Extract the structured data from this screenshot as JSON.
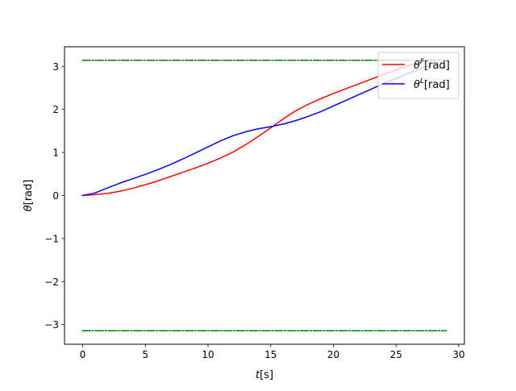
{
  "chart_data": {
    "type": "line",
    "title": "",
    "xlabel": "t[s]",
    "ylabel": "θ[rad]",
    "xlim": [
      -1.45,
      30.45
    ],
    "ylim": [
      -3.456,
      3.456
    ],
    "xticks": [
      0,
      5,
      10,
      15,
      20,
      25,
      30
    ],
    "yticks": [
      -3,
      -2,
      -1,
      0,
      1,
      2,
      3
    ],
    "xtick_labels": [
      "0",
      "5",
      "10",
      "15",
      "20",
      "25",
      "30"
    ],
    "ytick_labels": [
      "−3",
      "−2",
      "−1",
      "0",
      "1",
      "2",
      "3"
    ],
    "grid": false,
    "legend_position": "top-right",
    "series": [
      {
        "name": "θF[rad]",
        "label_base": "θ",
        "label_sup": "F",
        "label_rest": "[rad]",
        "color": "#ff0000",
        "dash": "solid",
        "x": [
          0,
          1,
          2,
          3,
          4,
          5,
          6,
          7,
          8,
          9,
          10,
          11,
          12,
          13,
          14,
          15,
          16,
          17,
          18,
          19,
          20,
          21,
          22,
          23,
          24,
          25,
          26,
          27,
          28
        ],
        "y": [
          0,
          0.02,
          0.05,
          0.1,
          0.17,
          0.25,
          0.34,
          0.44,
          0.54,
          0.64,
          0.75,
          0.87,
          1.01,
          1.18,
          1.37,
          1.57,
          1.78,
          1.97,
          2.12,
          2.25,
          2.37,
          2.48,
          2.59,
          2.7,
          2.81,
          2.92,
          3.02,
          3.1,
          3.14
        ]
      },
      {
        "name": "θL[rad]",
        "label_base": "θ",
        "label_sup": "L",
        "label_rest": "[rad]",
        "color": "#0000ff",
        "dash": "solid",
        "x": [
          0,
          1,
          2,
          3,
          4,
          5,
          6,
          7,
          8,
          9,
          10,
          11,
          12,
          13,
          14,
          15,
          16,
          17,
          18,
          19,
          20,
          21,
          22,
          23,
          24,
          25,
          26,
          27,
          28
        ],
        "y": [
          0,
          0.06,
          0.18,
          0.29,
          0.39,
          0.49,
          0.6,
          0.72,
          0.85,
          0.99,
          1.13,
          1.27,
          1.39,
          1.48,
          1.55,
          1.6,
          1.66,
          1.74,
          1.84,
          1.95,
          2.08,
          2.21,
          2.34,
          2.47,
          2.6,
          2.72,
          2.84,
          2.95,
          3.05
        ]
      },
      {
        "name": "",
        "color": "#008000",
        "dash": "dashdot",
        "x": [
          0,
          29
        ],
        "y": [
          3.14159,
          3.14159
        ]
      },
      {
        "name": "",
        "color": "#008000",
        "dash": "dashdot",
        "x": [
          0,
          29
        ],
        "y": [
          -3.14159,
          -3.14159
        ]
      }
    ]
  }
}
